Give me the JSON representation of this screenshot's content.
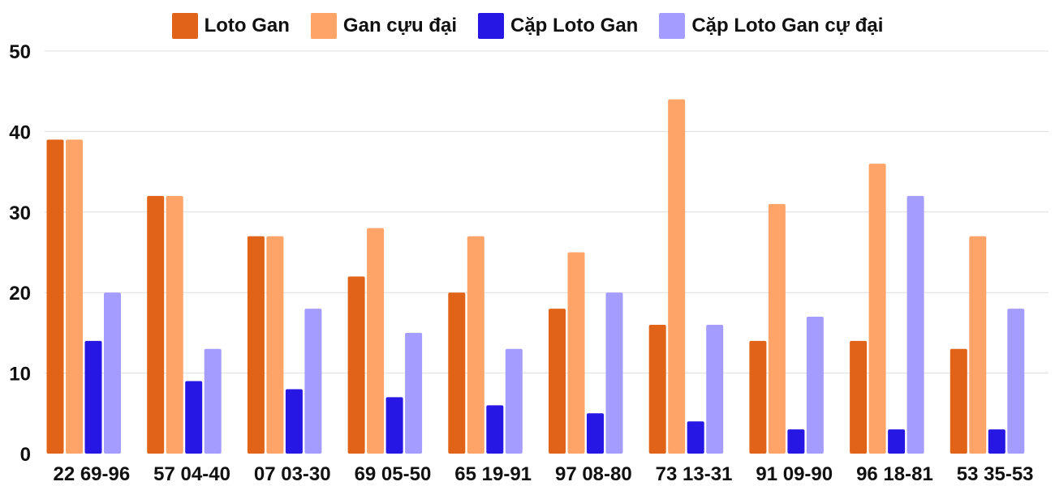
{
  "chart_data": {
    "type": "bar",
    "title": "",
    "xlabel": "",
    "ylabel": "",
    "ylim": [
      0,
      50
    ],
    "yticks": [
      0,
      10,
      20,
      30,
      40,
      50
    ],
    "grid": true,
    "legend_position": "top-center",
    "categories": [
      "22 69-96",
      "57 04-40",
      "07 03-30",
      "69 05-50",
      "65 19-91",
      "97 08-80",
      "73 13-31",
      "91 09-90",
      "96 18-81",
      "53 35-53"
    ],
    "series": [
      {
        "name": "Loto Gan",
        "color": "#E06317",
        "values": [
          39,
          32,
          27,
          22,
          20,
          18,
          16,
          14,
          14,
          13
        ]
      },
      {
        "name": "Gan cựu đại",
        "color": "#FFA468",
        "values": [
          39,
          32,
          27,
          28,
          27,
          25,
          44,
          31,
          36,
          27
        ]
      },
      {
        "name": "Cặp Loto Gan",
        "color": "#2717E4",
        "values": [
          14,
          9,
          8,
          7,
          6,
          5,
          4,
          3,
          3,
          3
        ]
      },
      {
        "name": "Cặp Loto Gan cự đại",
        "color": "#A49DFF",
        "values": [
          20,
          13,
          18,
          15,
          13,
          20,
          16,
          17,
          32,
          18
        ]
      }
    ]
  }
}
